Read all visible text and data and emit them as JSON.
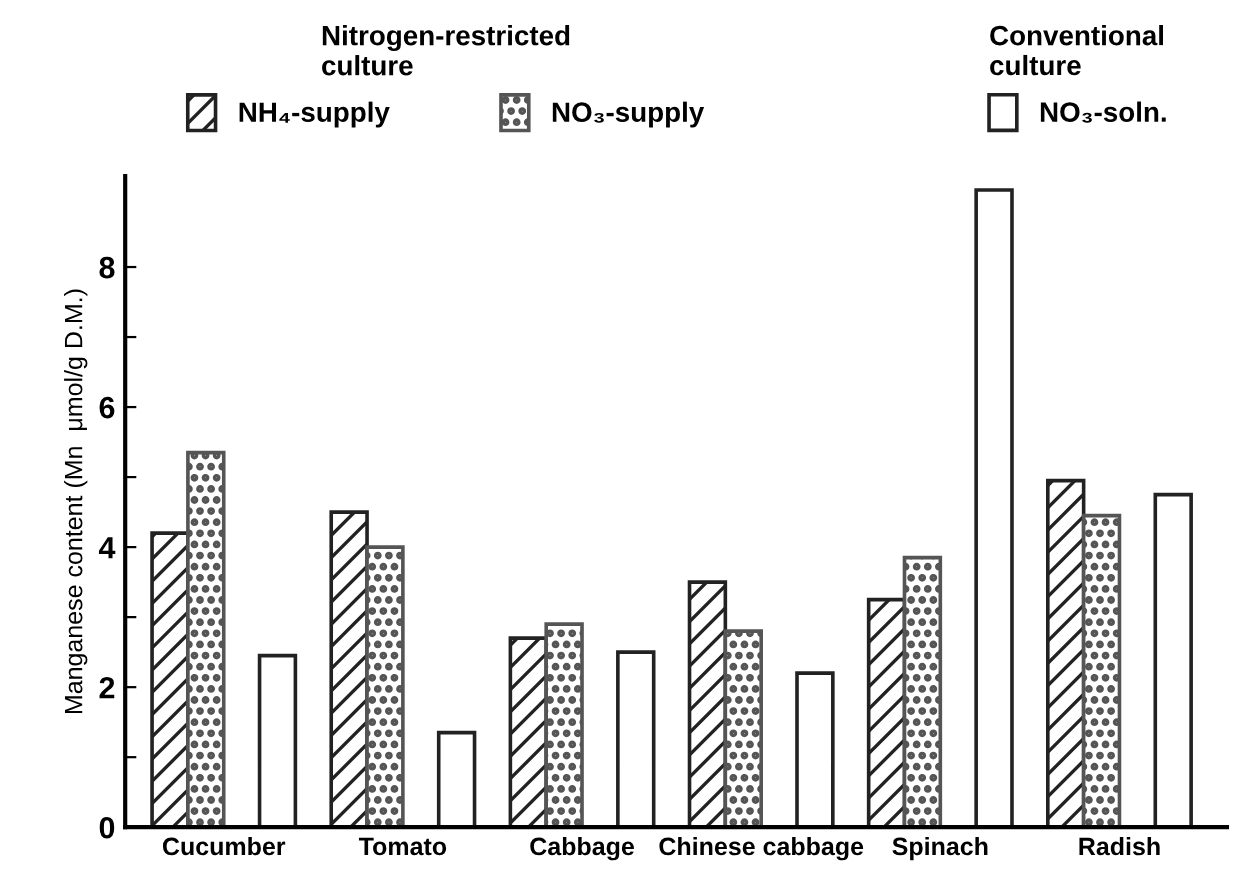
{
  "chart_data": {
    "type": "bar",
    "ylabel": "Manganese content (Mn  μmol/g D.M.)",
    "legend_title": "Nitrogen-restricted\nculture",
    "annotations": [
      "Conventional\nculture"
    ],
    "categories": [
      "Cucumber",
      "Tomato",
      "Cabbage",
      "Chinese cabbage",
      "Spinach",
      "Radish"
    ],
    "series": [
      {
        "name": "NH₄-supply",
        "color": "#222222",
        "values": [
          4.2,
          4.5,
          2.7,
          3.5,
          3.25,
          4.95
        ]
      },
      {
        "name": "NO₃-supply",
        "color": "#555555",
        "values": [
          5.35,
          4.0,
          2.9,
          2.8,
          3.85,
          4.45
        ]
      },
      {
        "name": "NO₃-soln.",
        "color": "#ffffff",
        "values": [
          2.45,
          1.35,
          2.5,
          2.2,
          9.1,
          4.75
        ]
      }
    ],
    "ylim": [
      0,
      9.3
    ],
    "yticks": [
      0,
      {
        "value": 1,
        "label": null
      },
      2,
      {
        "value": 3,
        "label": null
      },
      4,
      {
        "value": 5,
        "label": null
      },
      6,
      {
        "value": 7,
        "label": null
      },
      8
    ],
    "grid": false,
    "legend": "top"
  }
}
